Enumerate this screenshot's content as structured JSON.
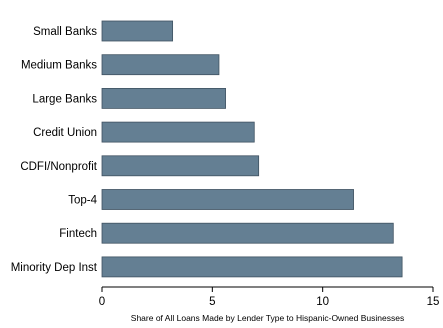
{
  "chart_data": {
    "type": "bar",
    "orientation": "horizontal",
    "categories": [
      "Small Banks",
      "Medium Banks",
      "Large Banks",
      "Credit Union",
      "CDFI/Nonprofit",
      "Top-4",
      "Fintech",
      "Minority Dep Inst"
    ],
    "values": [
      3.2,
      5.3,
      5.6,
      6.9,
      7.1,
      11.4,
      13.2,
      13.6
    ],
    "title": "",
    "xlabel": "Share of All Loans Made by Lender Type to Hispanic-Owned Businesses",
    "ylabel": "",
    "xlim": [
      0,
      15
    ],
    "xticks": [
      0,
      5,
      10,
      15
    ],
    "grid": false,
    "legend": false,
    "bar_color": "#647f93",
    "bar_edge_color": "#3f5261"
  }
}
